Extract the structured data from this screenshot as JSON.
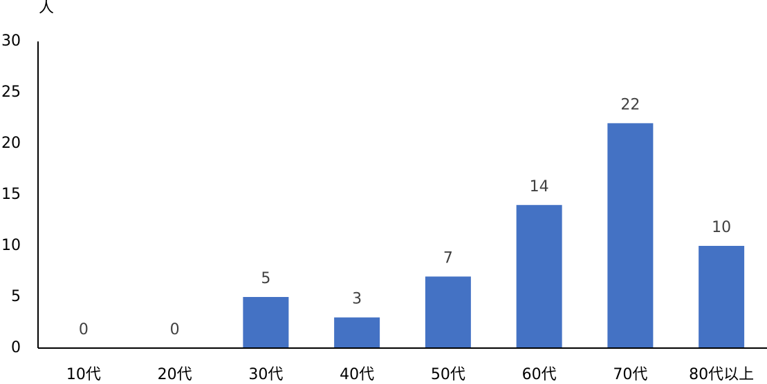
{
  "chart_data": {
    "type": "bar",
    "y_label": "人",
    "categories": [
      "10代",
      "20代",
      "30代",
      "40代",
      "50代",
      "60代",
      "70代",
      "80代以上"
    ],
    "values": [
      0,
      0,
      5,
      3,
      7,
      14,
      22,
      10
    ],
    "color": "#4472c4",
    "ylim": [
      0,
      30
    ],
    "yticks": [
      0,
      5,
      10,
      15,
      20,
      25,
      30
    ],
    "grid": false,
    "data_labels": true
  }
}
